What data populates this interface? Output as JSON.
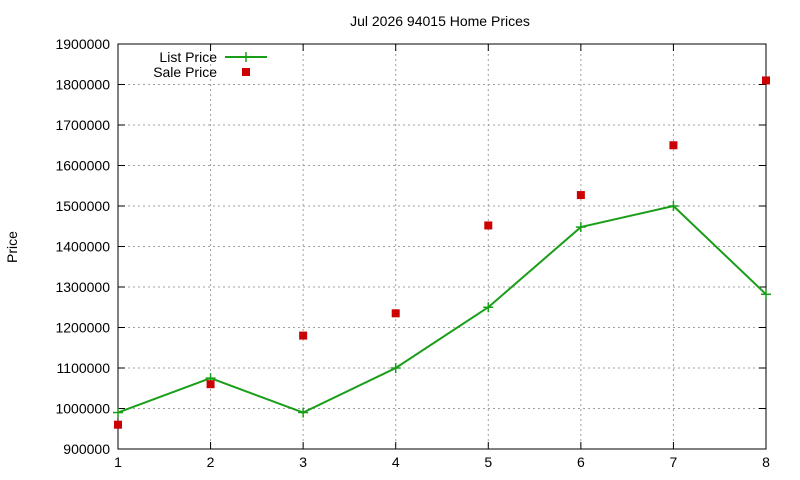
{
  "chart_data": {
    "type": "line",
    "title": "Jul 2026 94015 Home Prices",
    "xlabel": "",
    "ylabel": "Price",
    "x": [
      1,
      2,
      3,
      4,
      5,
      6,
      7,
      8
    ],
    "xlim": [
      1,
      8
    ],
    "ylim": [
      900000,
      1900000
    ],
    "yticks": [
      900000,
      1000000,
      1100000,
      1200000,
      1300000,
      1400000,
      1500000,
      1600000,
      1700000,
      1800000,
      1900000
    ],
    "grid": true,
    "legend_position": "top-left",
    "series": [
      {
        "name": "List Price",
        "style": "line-with-plus-markers",
        "color": "#1a9e1a",
        "values": [
          990000,
          1075000,
          990000,
          1100000,
          1250000,
          1448000,
          1500000,
          1282000
        ]
      },
      {
        "name": "Sale Price",
        "style": "square-markers",
        "color": "#cc0000",
        "values": [
          960000,
          1060000,
          1180000,
          1235000,
          1452000,
          1527000,
          1650000,
          1810000
        ]
      }
    ]
  }
}
